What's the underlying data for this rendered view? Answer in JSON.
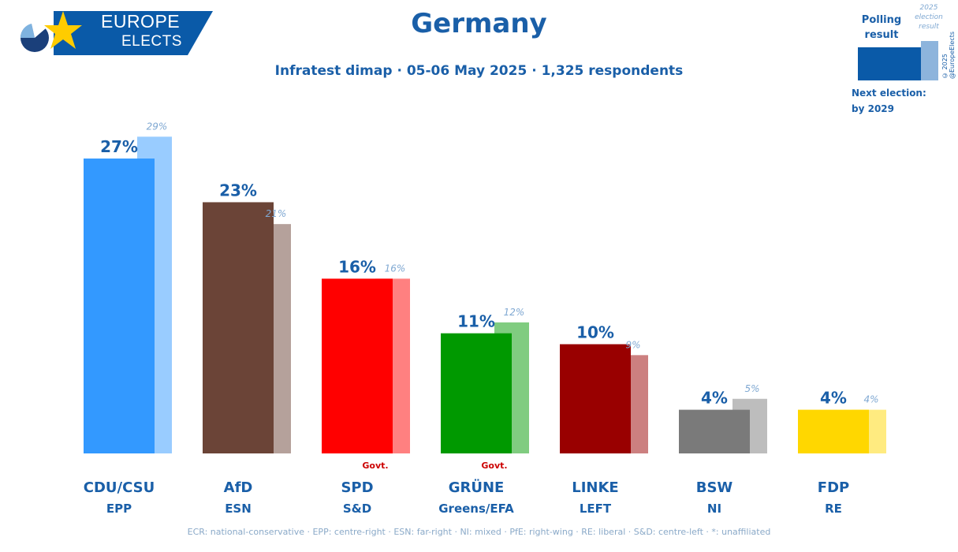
{
  "logo": {
    "line1": "EUROPE",
    "line2": "ELECTS"
  },
  "title": "Germany",
  "subtitle": "Infratest dimap · 05-06 May 2025 · 1,325 respondents",
  "legend": {
    "polling_label": "Polling result",
    "result_label": "2025 election result",
    "next_election_label": "Next election:",
    "next_election_value": "by 2029"
  },
  "copyright": "© 2025 @EuropeElects",
  "footer": "ECR: national-conservative · EPP: centre-right · ESN: far-right · NI: mixed · PfE: right-wing · RE: liberal · S&D: centre-left · *: unaffiliated",
  "chart_data": {
    "type": "bar",
    "title": "Germany",
    "categories": [
      "CDU/CSU",
      "AfD",
      "SPD",
      "GRÜNE",
      "LINKE",
      "BSW",
      "FDP"
    ],
    "groups": [
      "EPP",
      "ESN",
      "S&D",
      "Greens/EFA",
      "LEFT",
      "NI",
      "RE"
    ],
    "govt_tags": [
      "",
      "",
      "Govt.",
      "Govt.",
      "",
      "",
      ""
    ],
    "series": [
      {
        "name": "Polling result",
        "values": [
          27,
          23,
          16,
          11,
          10,
          4,
          4
        ],
        "labels": [
          "27%",
          "23%",
          "16%",
          "11%",
          "10%",
          "4%",
          "4%"
        ]
      },
      {
        "name": "2025 election result",
        "values": [
          29,
          21,
          16,
          12,
          9,
          5,
          4
        ],
        "labels": [
          "29%",
          "21%",
          "16%",
          "12%",
          "9%",
          "5%",
          "4%"
        ]
      }
    ],
    "colors_main": [
      "#3399ff",
      "#6b4437",
      "#ff0000",
      "#009900",
      "#990000",
      "#7a7a7a",
      "#ffd700"
    ],
    "colors_prev": [
      "#99ccff",
      "#b5a19b",
      "#ff8080",
      "#80cc80",
      "#cc8080",
      "#bdbdbd",
      "#ffeb80"
    ],
    "ylim": [
      0,
      30
    ],
    "xlabel": "",
    "ylabel": ""
  }
}
